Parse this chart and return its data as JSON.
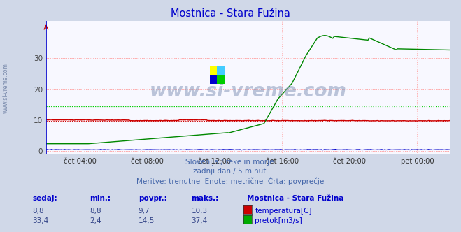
{
  "title": "Mostnica - Stara Fužina",
  "title_color": "#0000cc",
  "background_color": "#d0d8e8",
  "plot_background_color": "#f8f8ff",
  "xlabel": "",
  "ylabel": "",
  "xlim": [
    0,
    287
  ],
  "ylim": [
    -1,
    42
  ],
  "yticks": [
    0,
    10,
    20,
    30
  ],
  "grid_color": "#ffaaaa",
  "grid_color2": "#dddddd",
  "temp_avg": 9.7,
  "flow_avg": 14.5,
  "temp_color": "#cc0000",
  "flow_color": "#008800",
  "height_color": "#0000cc",
  "avg_line_color_temp": "#cc0000",
  "avg_line_color_flow": "#00cc00",
  "n_points": 288,
  "xtick_positions": [
    24,
    72,
    120,
    168,
    216,
    264
  ],
  "xtick_labels": [
    "čet 04:00",
    "čet 08:00",
    "čet 12:00",
    "čet 16:00",
    "čet 20:00",
    "pet 00:00"
  ],
  "border_color": "#0000cc",
  "left_border_color": "#0000cc",
  "subtitle_lines": [
    "Slovenija / reke in morje.",
    "zadnji dan / 5 minut.",
    "Meritve: trenutne  Enote: metrične  Črta: povprečje"
  ],
  "subtitle_color": "#4466aa",
  "subtitle_fontsize": 7.5,
  "table_headers": [
    "sedaj:",
    "min.:",
    "povpr.:",
    "maks.:"
  ],
  "table_header_color": "#0000cc",
  "station_name": "Mostnica - Stara Fužina",
  "rows": [
    {
      "sedaj": "8,8",
      "min": "8,8",
      "povpr": "9,7",
      "maks": "10,3",
      "color": "#cc0000",
      "label": "temperatura[C]"
    },
    {
      "sedaj": "33,4",
      "min": "2,4",
      "povpr": "14,5",
      "maks": "37,4",
      "color": "#00aa00",
      "label": "pretok[m3/s]"
    }
  ]
}
